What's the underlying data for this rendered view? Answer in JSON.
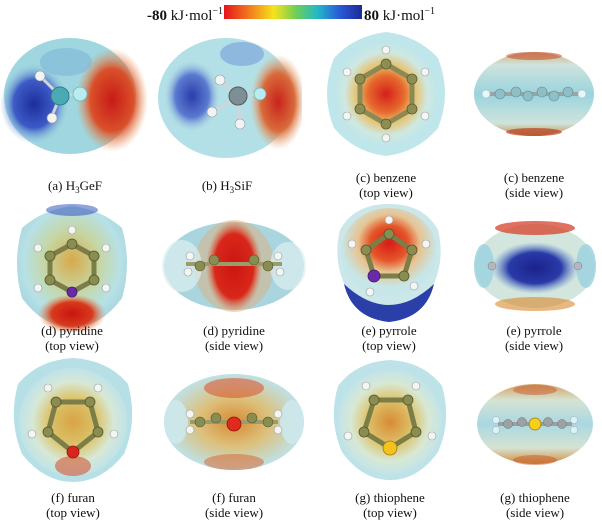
{
  "scale": {
    "min_label": "-80",
    "max_label": "80",
    "unit_text": " kJ·mol",
    "unit_exp": "−1",
    "colors": [
      "#e5131b",
      "#f27a1d",
      "#f7e21c",
      "#6fcf55",
      "#21b8c9",
      "#2b58d8",
      "#1b2a96"
    ]
  },
  "panels": [
    {
      "label_pre": "(a) H",
      "label_sub": "3",
      "label_post": "GeF",
      "line2": ""
    },
    {
      "label_pre": "(b) H",
      "label_sub": "3",
      "label_post": "SiF",
      "line2": ""
    },
    {
      "label_pre": "(c) benzene",
      "label_sub": "",
      "label_post": "",
      "line2": "(top view)"
    },
    {
      "label_pre": "(c) benzene",
      "label_sub": "",
      "label_post": "",
      "line2": "(side view)"
    },
    {
      "label_pre": "(d) pyridine",
      "label_sub": "",
      "label_post": "",
      "line2": "(top view)"
    },
    {
      "label_pre": "(d) pyridine",
      "label_sub": "",
      "label_post": "",
      "line2": "(side view)"
    },
    {
      "label_pre": "(e) pyrrole",
      "label_sub": "",
      "label_post": "",
      "line2": "(top view)"
    },
    {
      "label_pre": "(e) pyrrole",
      "label_sub": "",
      "label_post": "",
      "line2": "(side view)"
    },
    {
      "label_pre": "(f) furan",
      "label_sub": "",
      "label_post": "",
      "line2": "(top view)"
    },
    {
      "label_pre": "(f) furan",
      "label_sub": "",
      "label_post": "",
      "line2": "(side view)"
    },
    {
      "label_pre": "(g) thiophene",
      "label_sub": "",
      "label_post": "",
      "line2": "(top view)"
    },
    {
      "label_pre": "(g) thiophene",
      "label_sub": "",
      "label_post": "",
      "line2": "(side view)"
    }
  ]
}
